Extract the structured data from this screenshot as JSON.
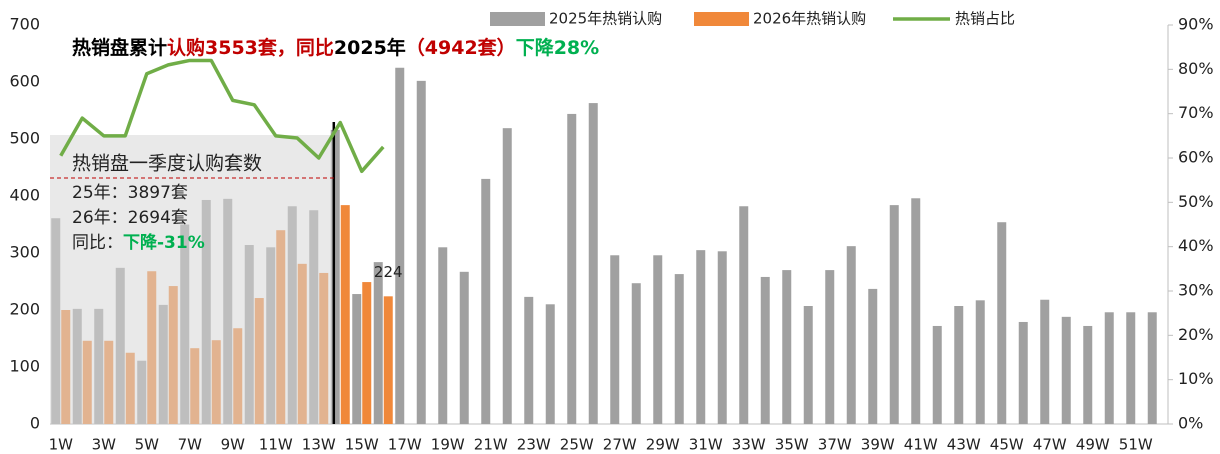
{
  "chart_data": {
    "type": "bar",
    "title_parts": [
      {
        "text": "热销盘累计",
        "color": "#000000"
      },
      {
        "text": "认购3553套，同比",
        "color": "#c00000"
      },
      {
        "text": "2025年",
        "color": "#000000"
      },
      {
        "text": "（4942套）",
        "color": "#c00000"
      },
      {
        "text": "下降28%",
        "color": "#00b050"
      }
    ],
    "annotation_box": {
      "heading": "热销盘一季度认购套数",
      "line1": "25年：3897套",
      "line2": "26年：2694套",
      "line3": "同比：",
      "line3_highlight": "下降-31%",
      "highlight_color": "#00b050"
    },
    "categories": [
      "1W",
      null,
      "3W",
      null,
      "5W",
      null,
      "7W",
      null,
      "9W",
      null,
      "11W",
      null,
      "13W",
      null,
      "15W",
      null,
      "17W",
      null,
      "19W",
      null,
      "21W",
      null,
      "23W",
      null,
      "25W",
      null,
      "27W",
      null,
      "29W",
      null,
      "31W",
      null,
      "33W",
      null,
      "35W",
      null,
      "37W",
      null,
      "39W",
      null,
      "41W",
      null,
      "43W",
      null,
      "45W",
      null,
      "47W",
      null,
      "49W",
      null,
      "51W",
      null
    ],
    "series": [
      {
        "name": "2025年热销认购",
        "color": "#a0a0a0",
        "type": "bar",
        "values": [
          361,
          202,
          202,
          274,
          111,
          209,
          350,
          393,
          395,
          314,
          310,
          382,
          375,
          516,
          228,
          284,
          625,
          602,
          310,
          267,
          430,
          519,
          223,
          210,
          544,
          563,
          296,
          247,
          296,
          263,
          305,
          303,
          382,
          258,
          270,
          207,
          270,
          312,
          237,
          384,
          396,
          172,
          207,
          217,
          354,
          179,
          218,
          188,
          172,
          196,
          196,
          196
        ]
      },
      {
        "name": "2026年热销认购",
        "color": "#f0883a",
        "type": "bar",
        "values": [
          200,
          146,
          146,
          125,
          268,
          242,
          133,
          147,
          168,
          221,
          340,
          281,
          265,
          384,
          249,
          224,
          null,
          null,
          null,
          null,
          null,
          null,
          null,
          null,
          null,
          null,
          null,
          null,
          null,
          null,
          null,
          null,
          null,
          null,
          null,
          null,
          null,
          null,
          null,
          null,
          null,
          null,
          null,
          null,
          null,
          null,
          null,
          null,
          null,
          null,
          null,
          null
        ]
      },
      {
        "name": "热销占比",
        "color": "#70ad47",
        "type": "line",
        "axis": "y2",
        "values": [
          60.5,
          69,
          65,
          65,
          79,
          81,
          82,
          82,
          73,
          72,
          65,
          64.5,
          60,
          68,
          57,
          62.5,
          null,
          null,
          null,
          null,
          null,
          null,
          null,
          null,
          null,
          null,
          null,
          null,
          null,
          null,
          null,
          null,
          null,
          null,
          null,
          null,
          null,
          null,
          null,
          null,
          null,
          null,
          null,
          null,
          null,
          null,
          null,
          null,
          null,
          null,
          null,
          null
        ]
      }
    ],
    "data_labels": [
      {
        "series": 1,
        "index": 15
      }
    ],
    "ylim": [
      0,
      700
    ],
    "yticks": [
      0,
      100,
      200,
      300,
      400,
      500,
      600,
      700
    ],
    "y2lim": [
      0,
      90
    ],
    "y2ticks": [
      {
        "value": 0,
        "label": "0%"
      },
      {
        "value": 10,
        "label": "10%"
      },
      {
        "value": 20,
        "label": "20%"
      },
      {
        "value": 30,
        "label": "30%"
      },
      {
        "value": 40,
        "label": "40%"
      },
      {
        "value": 50,
        "label": "50%"
      },
      {
        "value": 60,
        "label": "60%"
      },
      {
        "value": 70,
        "label": "70%"
      },
      {
        "value": 80,
        "label": "80%"
      },
      {
        "value": 90,
        "label": "90%"
      }
    ],
    "legend": "top"
  }
}
